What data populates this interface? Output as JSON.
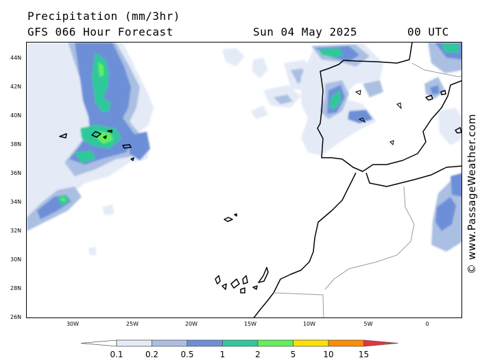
{
  "header": {
    "title": "Precipitation (mm/3hr)",
    "model_line": "GFS 066 Hour Forecast",
    "date": "Sun 04 May 2025",
    "time": "00 UTC"
  },
  "map": {
    "lat_labels": [
      "44N",
      "42N",
      "40N",
      "38N",
      "36N",
      "34N",
      "32N",
      "30N",
      "28N",
      "26N"
    ],
    "lon_labels": [
      "30W",
      "25W",
      "20W",
      "15W",
      "10W",
      "5W",
      "0"
    ]
  },
  "credit": "© www.PassageWeather.com",
  "legend": {
    "values": [
      "0.1",
      "0.2",
      "0.5",
      "1",
      "2",
      "5",
      "10",
      "15"
    ],
    "colors": [
      "#ffffff",
      "#e4ebf7",
      "#aabfe2",
      "#6c8fd8",
      "#2ec99a",
      "#62f05c",
      "#ffe100",
      "#ff8c00",
      "#e8333c"
    ]
  }
}
